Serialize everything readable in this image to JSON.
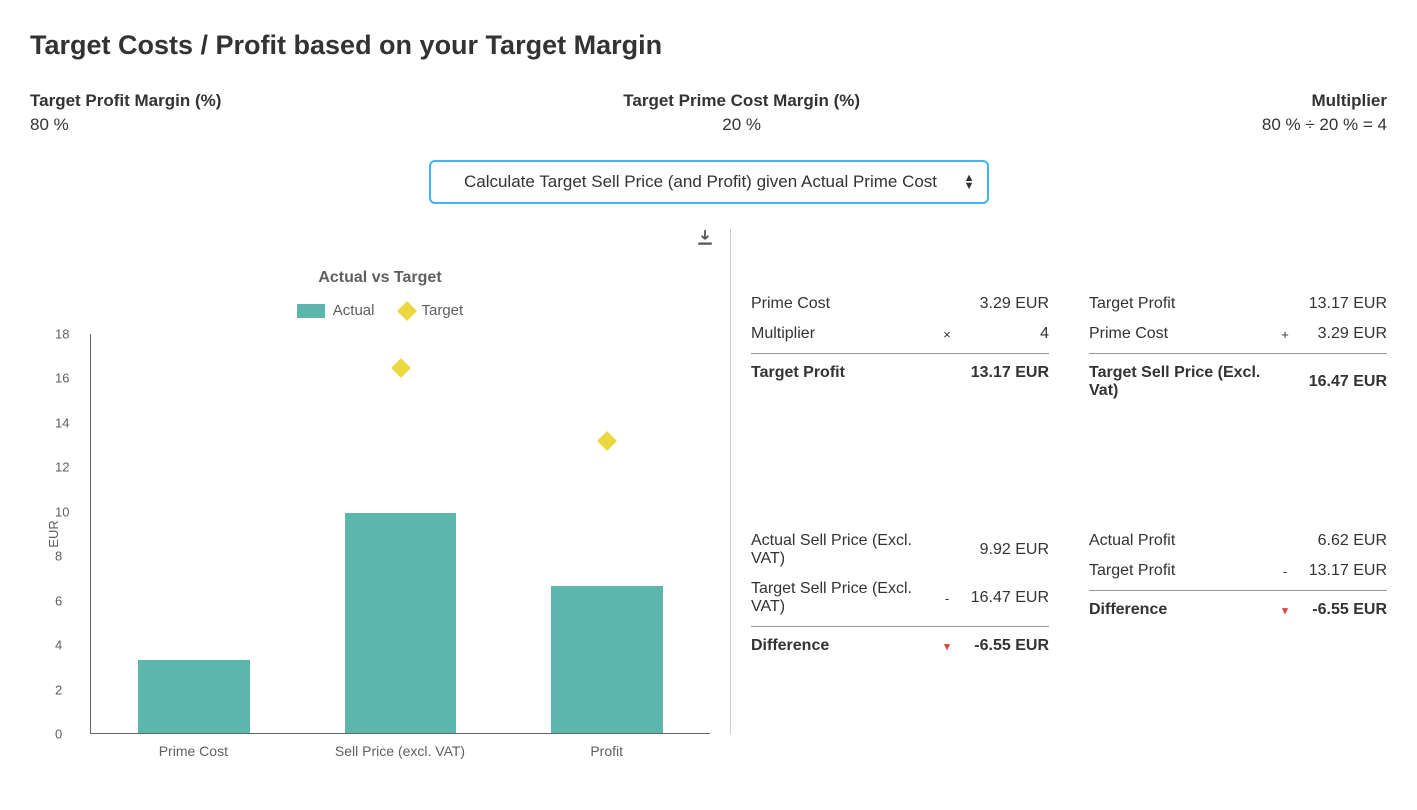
{
  "page": {
    "title": "Target Costs / Profit based on your Target Margin"
  },
  "metrics": {
    "profit_margin": {
      "label": "Target Profit Margin (%)",
      "value": "80 %"
    },
    "prime_cost_margin": {
      "label": "Target Prime Cost Margin (%)",
      "value": "20 %"
    },
    "multiplier": {
      "label": "Multiplier",
      "value": "80 % ÷ 20 % = 4"
    }
  },
  "selector": {
    "label": "Calculate Target Sell Price (and Profit) given Actual Prime Cost"
  },
  "chart": {
    "title": "Actual vs Target",
    "legend": {
      "actual": "Actual",
      "target": "Target"
    },
    "y_axis_label": "EUR",
    "ylim": [
      0,
      18
    ],
    "ytick_step": 2,
    "categories": [
      "Prime Cost",
      "Sell Price (excl. VAT)",
      "Profit"
    ],
    "actual_values": [
      3.29,
      9.92,
      6.62
    ],
    "target_values": [
      null,
      16.47,
      13.17
    ],
    "colors": {
      "actual_bar": "#5cb6ac",
      "target_marker": "#ecd940",
      "axis": "#666666",
      "text": "#5f5f5f"
    },
    "bar_width_pct": 18
  },
  "calcs": {
    "topLeft": {
      "r1": {
        "label": "Prime Cost",
        "op": "",
        "val": "3.29 EUR"
      },
      "r2": {
        "label": "Multiplier",
        "op": "×",
        "val": "4"
      },
      "total": {
        "label": "Target Profit",
        "op": "",
        "val": "13.17 EUR"
      }
    },
    "topRight": {
      "r1": {
        "label": "Target Profit",
        "op": "",
        "val": "13.17 EUR"
      },
      "r2": {
        "label": "Prime Cost",
        "op": "+",
        "val": "3.29 EUR"
      },
      "total": {
        "label": "Target Sell Price (Excl. Vat)",
        "op": "",
        "val": "16.47 EUR"
      }
    },
    "botLeft": {
      "r1": {
        "label": "Actual Sell Price (Excl. VAT)",
        "op": "",
        "val": "9.92 EUR"
      },
      "r2": {
        "label": "Target Sell Price (Excl. VAT)",
        "op": "-",
        "val": "16.47 EUR"
      },
      "total": {
        "label": "Difference",
        "op": "▾",
        "val": "-6.55 EUR"
      }
    },
    "botRight": {
      "r1": {
        "label": "Actual Profit",
        "op": "",
        "val": "6.62 EUR"
      },
      "r2": {
        "label": "Target Profit",
        "op": "-",
        "val": "13.17 EUR"
      },
      "total": {
        "label": "Difference",
        "op": "▾",
        "val": "-6.55 EUR"
      }
    }
  }
}
